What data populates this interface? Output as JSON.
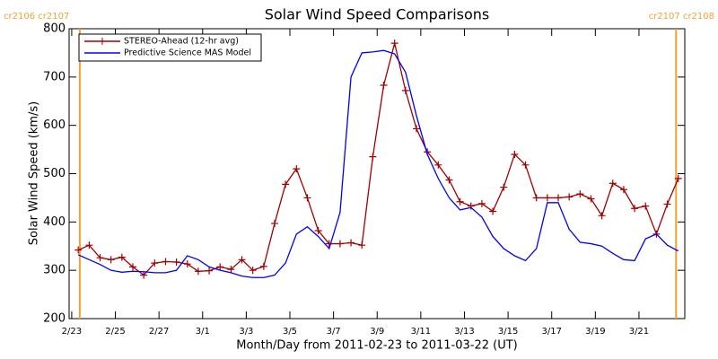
{
  "chart_data": {
    "type": "line",
    "title": "Solar Wind Speed Comparisons",
    "xlabel": "Month/Day from 2011-02-23 to 2011-03-22 (UT)",
    "ylabel": "Solar Wind Speed (km/s)",
    "xlim": [
      -0.12,
      28.1
    ],
    "ylim": [
      200,
      800
    ],
    "yticks": [
      200,
      300,
      400,
      500,
      600,
      700,
      800
    ],
    "xticks": [
      {
        "value": 0,
        "label": "2/23"
      },
      {
        "value": 2,
        "label": "2/25"
      },
      {
        "value": 4,
        "label": "2/27"
      },
      {
        "value": 6,
        "label": "3/1"
      },
      {
        "value": 8,
        "label": "3/3"
      },
      {
        "value": 10,
        "label": "3/5"
      },
      {
        "value": 12,
        "label": "3/7"
      },
      {
        "value": 14,
        "label": "3/9"
      },
      {
        "value": 16,
        "label": "3/11"
      },
      {
        "value": 18,
        "label": "3/13"
      },
      {
        "value": 20,
        "label": "3/15"
      },
      {
        "value": 22,
        "label": "3/17"
      },
      {
        "value": 24,
        "label": "3/19"
      },
      {
        "value": 26,
        "label": "3/21"
      }
    ],
    "x": [
      0.3,
      0.8,
      1.3,
      1.8,
      2.3,
      2.8,
      3.3,
      3.8,
      4.3,
      4.8,
      5.3,
      5.8,
      6.3,
      6.8,
      7.3,
      7.8,
      8.3,
      8.8,
      9.3,
      9.8,
      10.3,
      10.8,
      11.3,
      11.8,
      12.3,
      12.8,
      13.3,
      13.8,
      14.3,
      14.8,
      15.3,
      15.8,
      16.3,
      16.8,
      17.3,
      17.8,
      18.3,
      18.8,
      19.3,
      19.8,
      20.3,
      20.8,
      21.3,
      21.8,
      22.3,
      22.8,
      23.3,
      23.8,
      24.3,
      24.8,
      25.3,
      25.8,
      26.3,
      26.8,
      27.3,
      27.8
    ],
    "series": [
      {
        "name": "STEREO-Ahead (12-hr avg)",
        "color": "#a00000",
        "marker": "+",
        "values": [
          342,
          352,
          326,
          322,
          327,
          307,
          290,
          315,
          318,
          317,
          313,
          298,
          299,
          307,
          302,
          322,
          300,
          308,
          397,
          478,
          510,
          450,
          382,
          355,
          355,
          357,
          352,
          535,
          683,
          770,
          672,
          593,
          545,
          518,
          487,
          442,
          433,
          438,
          422,
          472,
          540,
          518,
          450,
          450,
          450,
          452,
          458,
          448,
          413,
          480,
          467,
          428,
          433,
          375,
          437,
          490
        ]
      },
      {
        "name": "Predictive Science MAS Model",
        "color": "#0000ff",
        "marker": null,
        "values": [
          332,
          322,
          312,
          300,
          296,
          298,
          297,
          295,
          295,
          300,
          330,
          322,
          307,
          300,
          295,
          288,
          285,
          285,
          290,
          315,
          375,
          390,
          370,
          345,
          420,
          700,
          750,
          752,
          755,
          748,
          710,
          620,
          540,
          490,
          450,
          425,
          430,
          410,
          370,
          345,
          330,
          320,
          345,
          440,
          440,
          385,
          358,
          355,
          350,
          335,
          322,
          320,
          365,
          375,
          352,
          340
        ]
      }
    ],
    "vlines": [
      {
        "x": 0.37,
        "label": "cr2106 cr2107",
        "side": "left"
      },
      {
        "x": 27.7,
        "label": "cr2107 cr2108",
        "side": "right"
      }
    ],
    "vline_color": "#f5a030",
    "legend": "upper left"
  }
}
